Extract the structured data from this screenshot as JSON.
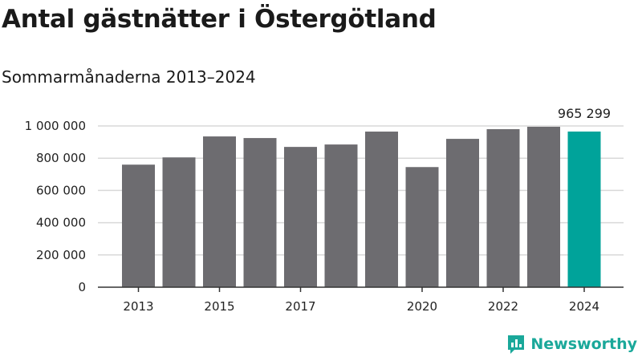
{
  "title": "Antal gästnätter i Östergötland",
  "subtitle": "Sommarmånaderna 2013–2024",
  "brand": {
    "name": "Newsworthy"
  },
  "colors": {
    "bar": "#6d6c70",
    "highlight": "#00a39a",
    "grid": "#d9d9d9",
    "axis": "#333333"
  },
  "chart_data": {
    "type": "bar",
    "categories": [
      "2013",
      "2014",
      "2015",
      "2016",
      "2017",
      "2018",
      "2019",
      "2020",
      "2021",
      "2022",
      "2023",
      "2024"
    ],
    "values": [
      760000,
      805000,
      935000,
      925000,
      870000,
      885000,
      965000,
      745000,
      920000,
      980000,
      995000,
      965299
    ],
    "tick_labels_x": [
      "2013",
      "2015",
      "2017",
      "2020",
      "2022",
      "2024"
    ],
    "y_ticks": [
      0,
      200000,
      400000,
      600000,
      800000,
      1000000
    ],
    "y_tick_labels": [
      "0",
      "200 000",
      "400 000",
      "600 000",
      "800 000",
      "1 000 000"
    ],
    "ylim": [
      0,
      1000000
    ],
    "highlight_category": "2024",
    "data_label": "965 299",
    "grid": true,
    "legend": "none"
  }
}
